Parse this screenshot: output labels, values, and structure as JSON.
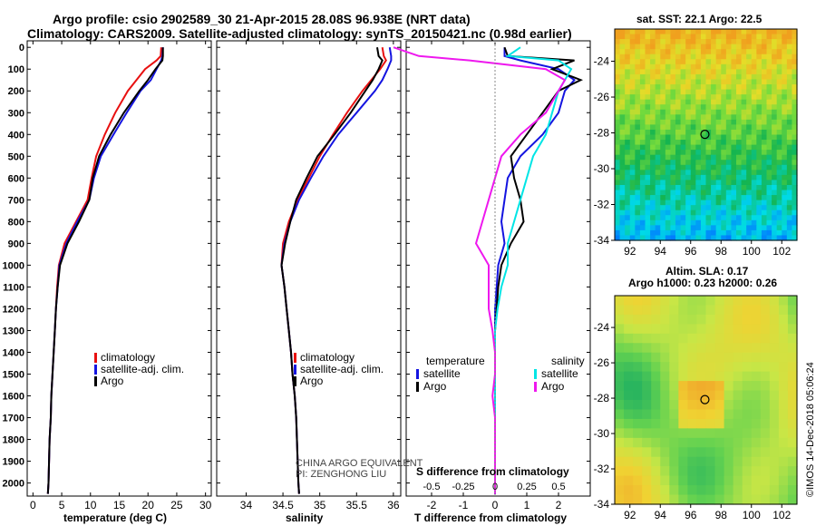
{
  "header": {
    "line1": "Argo profile: csio 2902589_30 21-Apr-2015 28.08S 96.938E (NRT data)",
    "line2": "Climatology: CARS2009. Satellite-adjusted climatology: synTS_20150421.nc (0.98d earlier)"
  },
  "colors": {
    "climatology": "#e81010",
    "satellite": "#1414e0",
    "argo": "#000000",
    "sat_salinity": "#00e5e5",
    "clim_salinity": "#ee18ee"
  },
  "depth_axis": {
    "ticks": [
      "0",
      "100",
      "200",
      "300",
      "400",
      "500",
      "600",
      "700",
      "800",
      "900",
      "1000",
      "1100",
      "1200",
      "1300",
      "1400",
      "1500",
      "1600",
      "1700",
      "1800",
      "1900",
      "2000"
    ]
  },
  "chart_data": [
    {
      "type": "line",
      "name": "temperature profile",
      "xlabel": "temperature (deg C)",
      "xlim": [
        -1,
        31
      ],
      "ylim": [
        2060,
        -30
      ],
      "xticks": [
        "0",
        "5",
        "10",
        "15",
        "20",
        "25",
        "30"
      ],
      "depth": [
        0,
        40,
        60,
        100,
        150,
        200,
        300,
        400,
        500,
        600,
        700,
        800,
        900,
        1000,
        1100,
        1200,
        1300,
        1400,
        1500,
        1600,
        1700,
        1800,
        1900,
        2000,
        2050
      ],
      "series": [
        {
          "name": "climatology",
          "values": [
            22.3,
            22.2,
            21.5,
            19.5,
            18,
            16.5,
            14.3,
            12.5,
            11,
            10.2,
            9.5,
            7.5,
            5.5,
            4.5,
            4.2,
            4,
            3.8,
            3.6,
            3.4,
            3.2,
            3.1,
            2.9,
            2.8,
            2.7,
            2.6
          ]
        },
        {
          "name": "satellite-adj. clim.",
          "values": [
            22.6,
            22.5,
            22.3,
            21.5,
            20.5,
            18.7,
            16.3,
            14,
            11.8,
            10.6,
            9.8,
            7.7,
            5.8,
            4.6,
            4.3,
            4,
            3.8,
            3.6,
            3.4,
            3.2,
            3.1,
            2.9,
            2.8,
            2.7,
            2.6
          ]
        },
        {
          "name": "Argo",
          "values": [
            22.6,
            22.6,
            22.5,
            21.3,
            20,
            18.5,
            15.8,
            13.5,
            11.5,
            10.4,
            9.8,
            8,
            6,
            4.7,
            4.3,
            4,
            3.8,
            3.6,
            3.4,
            3.2,
            3.1,
            2.9,
            2.8,
            2.7,
            2.6
          ]
        }
      ],
      "legend": [
        "climatology",
        "satellite-adj. clim.",
        "Argo"
      ]
    },
    {
      "type": "line",
      "name": "salinity profile",
      "xlabel": "salinity",
      "xlim": [
        33.6,
        36.1
      ],
      "ylim": [
        2060,
        -30
      ],
      "xticks": [
        "34",
        "34.5",
        "35",
        "35.5",
        "36"
      ],
      "depth": [
        0,
        40,
        60,
        100,
        150,
        200,
        300,
        400,
        500,
        600,
        700,
        800,
        900,
        1000,
        1100,
        1200,
        1300,
        1400,
        1500,
        1600,
        1700,
        1800,
        1900,
        2000,
        2050
      ],
      "series": [
        {
          "name": "climatology",
          "values": [
            35.85,
            35.87,
            35.9,
            35.82,
            35.7,
            35.58,
            35.37,
            35.18,
            35,
            34.85,
            34.7,
            34.58,
            34.5,
            34.48,
            34.52,
            34.55,
            34.58,
            34.61,
            34.63,
            34.66,
            34.68,
            34.69,
            34.7,
            34.71,
            34.72
          ]
        },
        {
          "name": "satellite-adj. clim.",
          "values": [
            35.95,
            35.97,
            35.97,
            35.92,
            35.85,
            35.75,
            35.5,
            35.25,
            35.05,
            34.88,
            34.72,
            34.6,
            34.52,
            34.48,
            34.52,
            34.55,
            34.58,
            34.61,
            34.63,
            34.66,
            34.68,
            34.69,
            34.7,
            34.71,
            34.72
          ]
        },
        {
          "name": "Argo",
          "values": [
            35.78,
            35.8,
            35.85,
            35.8,
            35.72,
            35.62,
            35.42,
            35.2,
            34.97,
            34.82,
            34.68,
            34.6,
            34.53,
            34.48,
            34.52,
            34.55,
            34.58,
            34.61,
            34.63,
            34.66,
            34.68,
            34.69,
            34.7,
            34.71,
            34.72
          ]
        }
      ],
      "legend": [
        "climatology",
        "satellite-adj. clim.",
        "Argo"
      ],
      "note_line1": "CHINA ARGO EQUIVALENT",
      "note_line2": "PI: ZENGHONG LIU"
    },
    {
      "type": "line",
      "name": "difference from climatology",
      "xlabel": "T difference from climatology",
      "xlim": [
        -2.8,
        3
      ],
      "ylim": [
        2060,
        -30
      ],
      "xticks": [
        "-2",
        "-1",
        "0",
        "1",
        "2"
      ],
      "s_label": "S difference from climatology",
      "s_xticks": [
        "-0.5",
        "-0.25",
        "0",
        "0.25",
        "0.5"
      ],
      "depth": [
        0,
        40,
        60,
        100,
        150,
        200,
        300,
        400,
        500,
        600,
        700,
        800,
        900,
        1000,
        1100,
        1200,
        1300,
        1400,
        1500,
        1600,
        1700,
        1800,
        1900,
        2000,
        2050
      ],
      "series": [
        {
          "name": "temperature satellite",
          "values": [
            0.3,
            0.3,
            0.8,
            2,
            2.5,
            2.2,
            2,
            1.5,
            0.8,
            0.4,
            0.3,
            0.2,
            0.3,
            0.1,
            0.05,
            0,
            0,
            0,
            0,
            0,
            0,
            0,
            0,
            0,
            0
          ]
        },
        {
          "name": "temperature Argo",
          "values": [
            0.3,
            0.4,
            2.5,
            1.8,
            2.7,
            2,
            1.5,
            1,
            0.5,
            0.6,
            0.8,
            0.9,
            0.5,
            0.2,
            0.1,
            0.05,
            0,
            0,
            0,
            0,
            0,
            0,
            0,
            0,
            0
          ]
        },
        {
          "name": "salinity satellite",
          "values": [
            0.2,
            0.1,
            0.5,
            0.6,
            0.55,
            0.5,
            0.45,
            0.4,
            0.3,
            0.25,
            0.2,
            0.15,
            0.1,
            0.1,
            0.05,
            0.02,
            0,
            0,
            0,
            0,
            0,
            0,
            0,
            0,
            0
          ]
        },
        {
          "name": "salinity Argo",
          "values": [
            -0.8,
            -0.6,
            -0.2,
            0.4,
            0.55,
            0.5,
            0.4,
            0.2,
            0.05,
            0.0,
            -0.05,
            -0.1,
            -0.15,
            -0.05,
            -0.05,
            -0.05,
            -0.02,
            0,
            0,
            -0.02,
            0,
            0,
            0,
            0,
            0
          ]
        }
      ],
      "legend_temperature_title": "temperature",
      "legend_salinity_title": "salinity",
      "legend_temperature": [
        "satellite",
        "Argo"
      ],
      "legend_salinity": [
        "satellite",
        "Argo"
      ]
    },
    {
      "type": "heatmap",
      "name": "satellite SST map",
      "title": "sat. SST: 22.1 Argo: 22.5",
      "xticks": [
        "92",
        "94",
        "96",
        "98",
        "100",
        "102"
      ],
      "yticks": [
        "-24",
        "-26",
        "-28",
        "-30",
        "-32",
        "-34"
      ],
      "xlim": [
        91,
        103
      ],
      "ylim": [
        -34,
        -22.2
      ],
      "argo_position": {
        "lon": 96.938,
        "lat": -28.08
      }
    },
    {
      "type": "heatmap",
      "name": "altimetry SLA map",
      "title_line1": "Altim. SLA: 0.17",
      "title_line2": "Argo h1000: 0.23 h2000: 0.26",
      "xticks": [
        "92",
        "94",
        "96",
        "98",
        "100",
        "102"
      ],
      "yticks": [
        "-24",
        "-26",
        "-28",
        "-30",
        "-32",
        "-34"
      ],
      "xlim": [
        91,
        103
      ],
      "ylim": [
        -34,
        -22.2
      ],
      "argo_position": {
        "lon": 96.938,
        "lat": -28.08
      }
    }
  ],
  "footer_stamp": "©IMOS 14-Dec-2018 05:06:24"
}
